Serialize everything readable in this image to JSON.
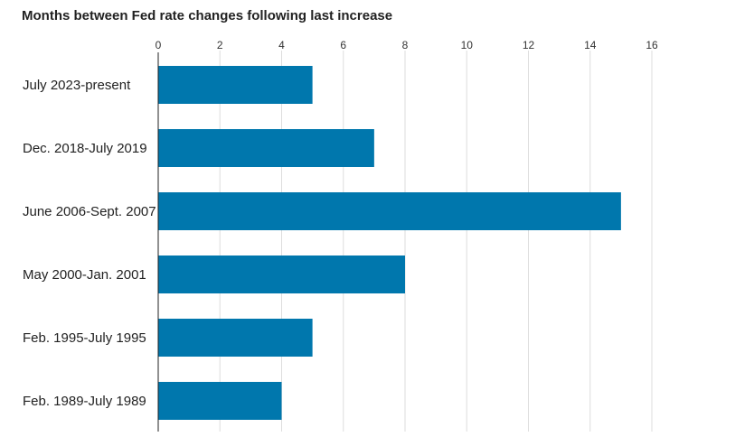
{
  "chart_data": {
    "type": "bar",
    "orientation": "horizontal",
    "title": "Months between Fed rate changes following last increase",
    "xlabel": "",
    "ylabel": "",
    "categories": [
      "July 2023-present",
      "Dec. 2018-July 2019",
      "June 2006-Sept. 2007",
      "May 2000-Jan. 2001",
      "Feb. 1995-July 1995",
      "Feb. 1989-July 1989"
    ],
    "values": [
      5,
      7,
      15,
      8,
      5,
      4
    ],
    "xlim": [
      0,
      16
    ],
    "xticks": [
      "0",
      "2",
      "4",
      "6",
      "8",
      "10",
      "12",
      "14",
      "16"
    ],
    "tick_position": "top",
    "grid": true,
    "legend": "none",
    "colors": {
      "bar": "#0077ad",
      "grid": "#dddddd",
      "axis": "#222222"
    }
  }
}
